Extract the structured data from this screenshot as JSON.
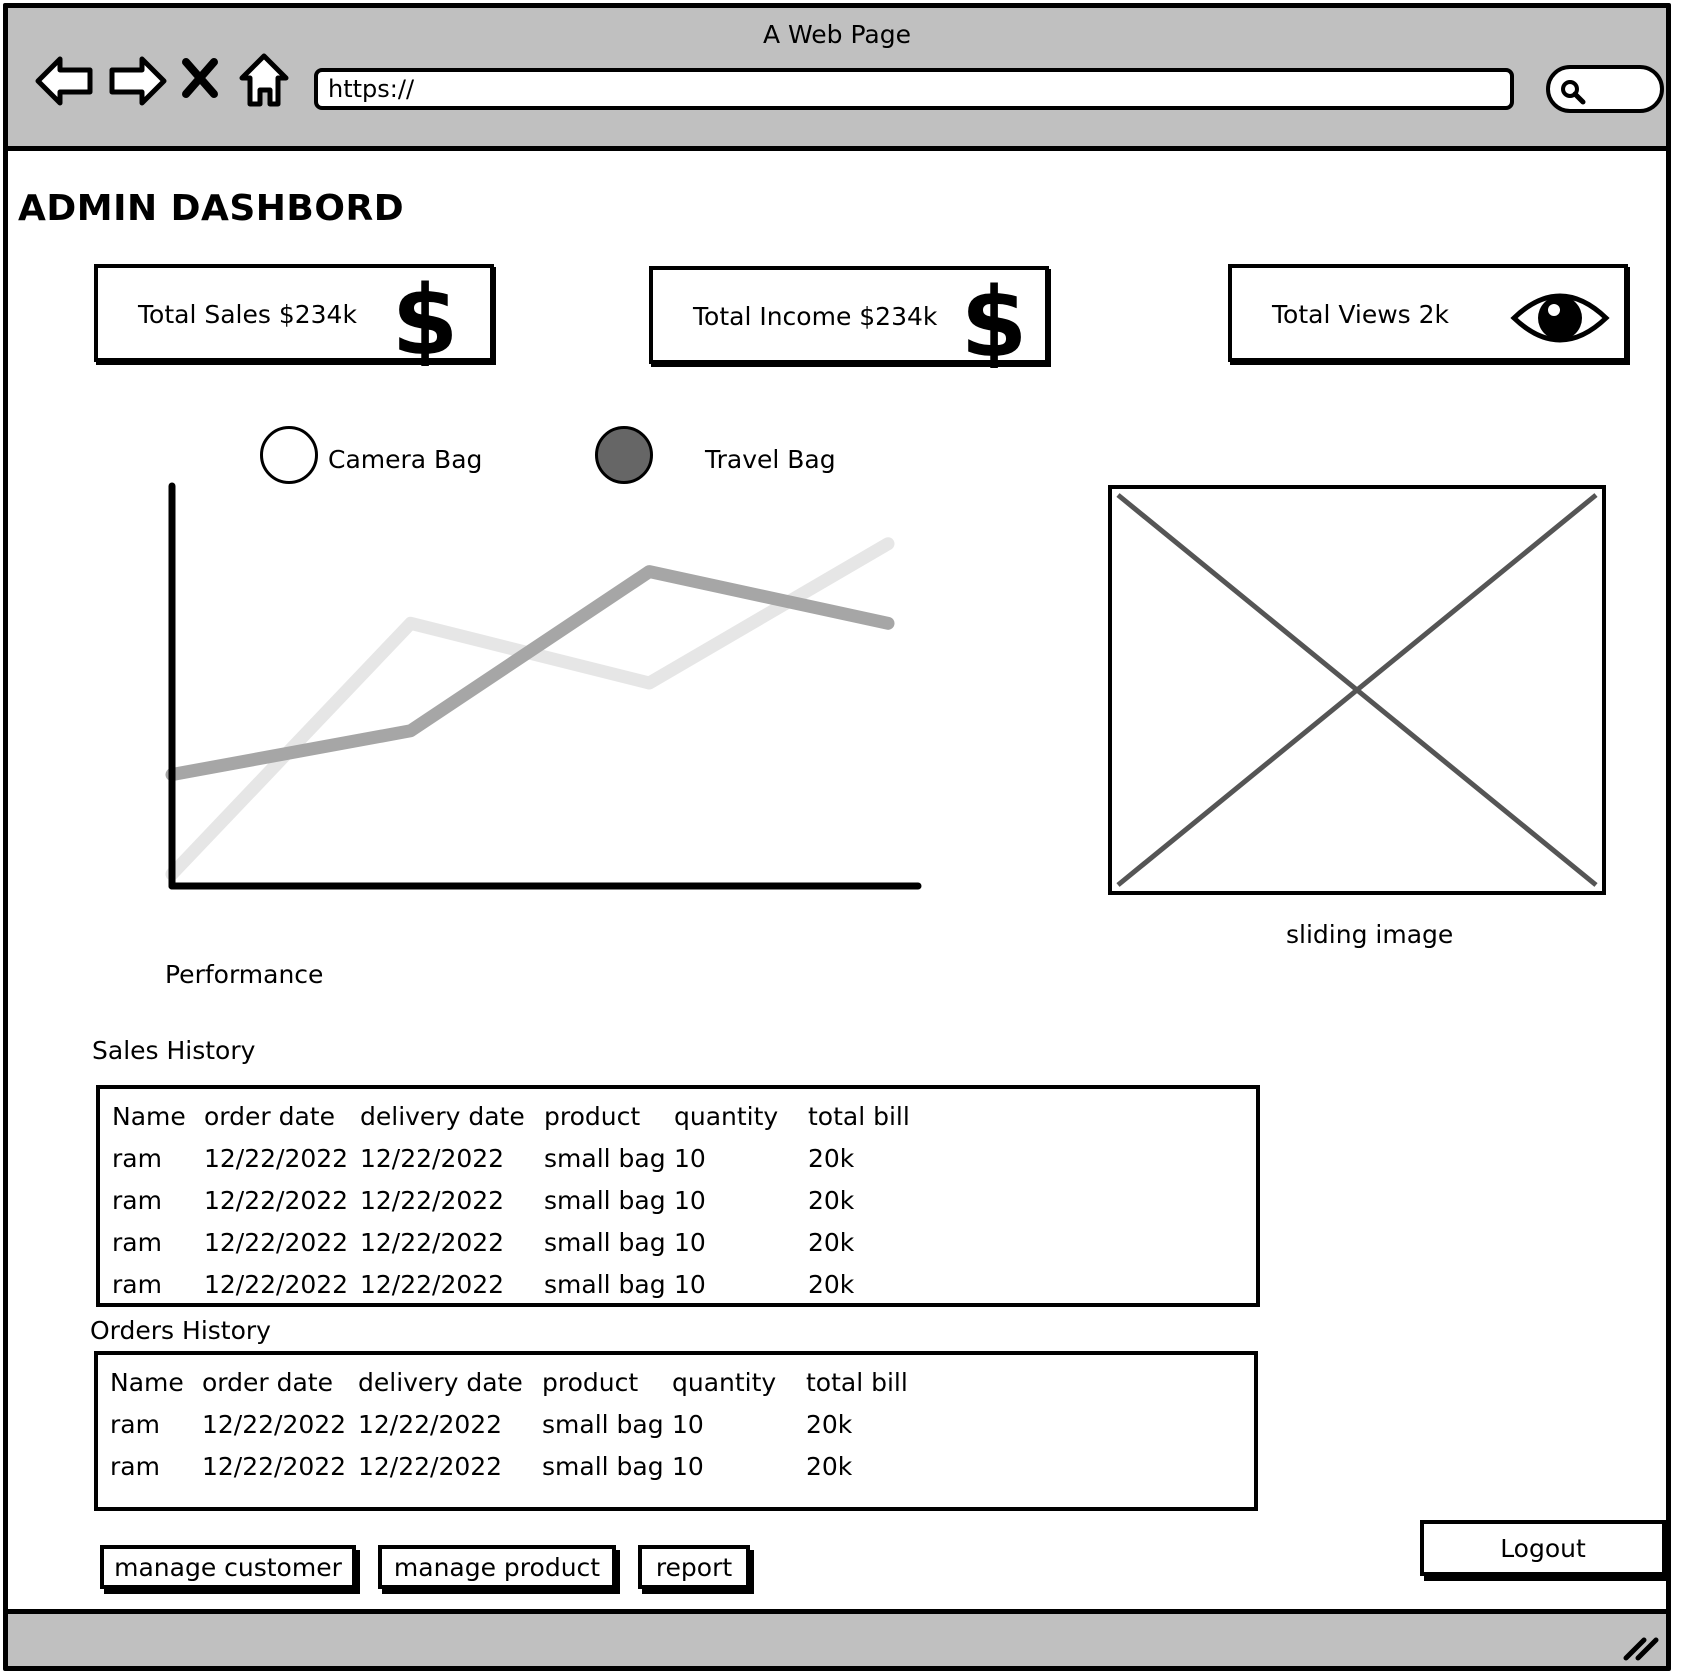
{
  "window": {
    "title": "A Web Page"
  },
  "browser": {
    "url": "https://",
    "back_icon": "back-arrow-icon",
    "forward_icon": "forward-arrow-icon",
    "stop_icon": "close-icon",
    "home_icon": "home-icon",
    "search_icon": "search-icon"
  },
  "page": {
    "title": "ADMIN DASHBORD"
  },
  "stats": [
    {
      "label": "Total Sales  $234k",
      "icon": "dollar-icon"
    },
    {
      "label": "Total Income  $234k",
      "icon": "dollar-icon"
    },
    {
      "label": "Total Views  2k",
      "icon": "eye-icon"
    }
  ],
  "legend": [
    {
      "label": "Camera Bag",
      "color": "#ffffff"
    },
    {
      "label": "Travel Bag",
      "color": "#666666"
    }
  ],
  "chart_data": {
    "type": "line",
    "title": "Performance",
    "xlabel": "",
    "ylabel": "",
    "x": [
      0,
      1,
      2,
      3
    ],
    "ylim": [
      0,
      10
    ],
    "grid": false,
    "legend_position": "top",
    "series": [
      {
        "name": "Camera Bag",
        "color": "#e6e6e6",
        "values": [
          0.3,
          6.6,
          5.1,
          8.6
        ]
      },
      {
        "name": "Travel Bag",
        "color": "#a6a6a6",
        "values": [
          2.8,
          3.9,
          7.9,
          6.6
        ]
      }
    ]
  },
  "image": {
    "caption": "sliding image"
  },
  "sales_history": {
    "title": "Sales History",
    "columns": [
      "Name",
      "order date",
      "delivery date",
      "product",
      "quantity",
      "total bill"
    ],
    "rows": [
      [
        "ram",
        "12/22/2022",
        "12/22/2022",
        "small bag",
        "10",
        "20k"
      ],
      [
        "ram",
        "12/22/2022",
        "12/22/2022",
        "small bag",
        "10",
        "20k"
      ],
      [
        "ram",
        "12/22/2022",
        "12/22/2022",
        "small bag",
        "10",
        "20k"
      ],
      [
        "ram",
        "12/22/2022",
        "12/22/2022",
        "small bag",
        "10",
        "20k"
      ]
    ]
  },
  "orders_history": {
    "title": "Orders History",
    "columns": [
      "Name",
      "order date",
      "delivery date",
      "product",
      "quantity",
      "total bill"
    ],
    "rows": [
      [
        "ram",
        "12/22/2022",
        "12/22/2022",
        "small bag",
        "10",
        "20k"
      ],
      [
        "ram",
        "12/22/2022",
        "12/22/2022",
        "small bag",
        "10",
        "20k"
      ]
    ]
  },
  "buttons": {
    "manage_customer": "manage customer",
    "manage_product": "manage product",
    "report": "report",
    "logout": "Logout"
  }
}
